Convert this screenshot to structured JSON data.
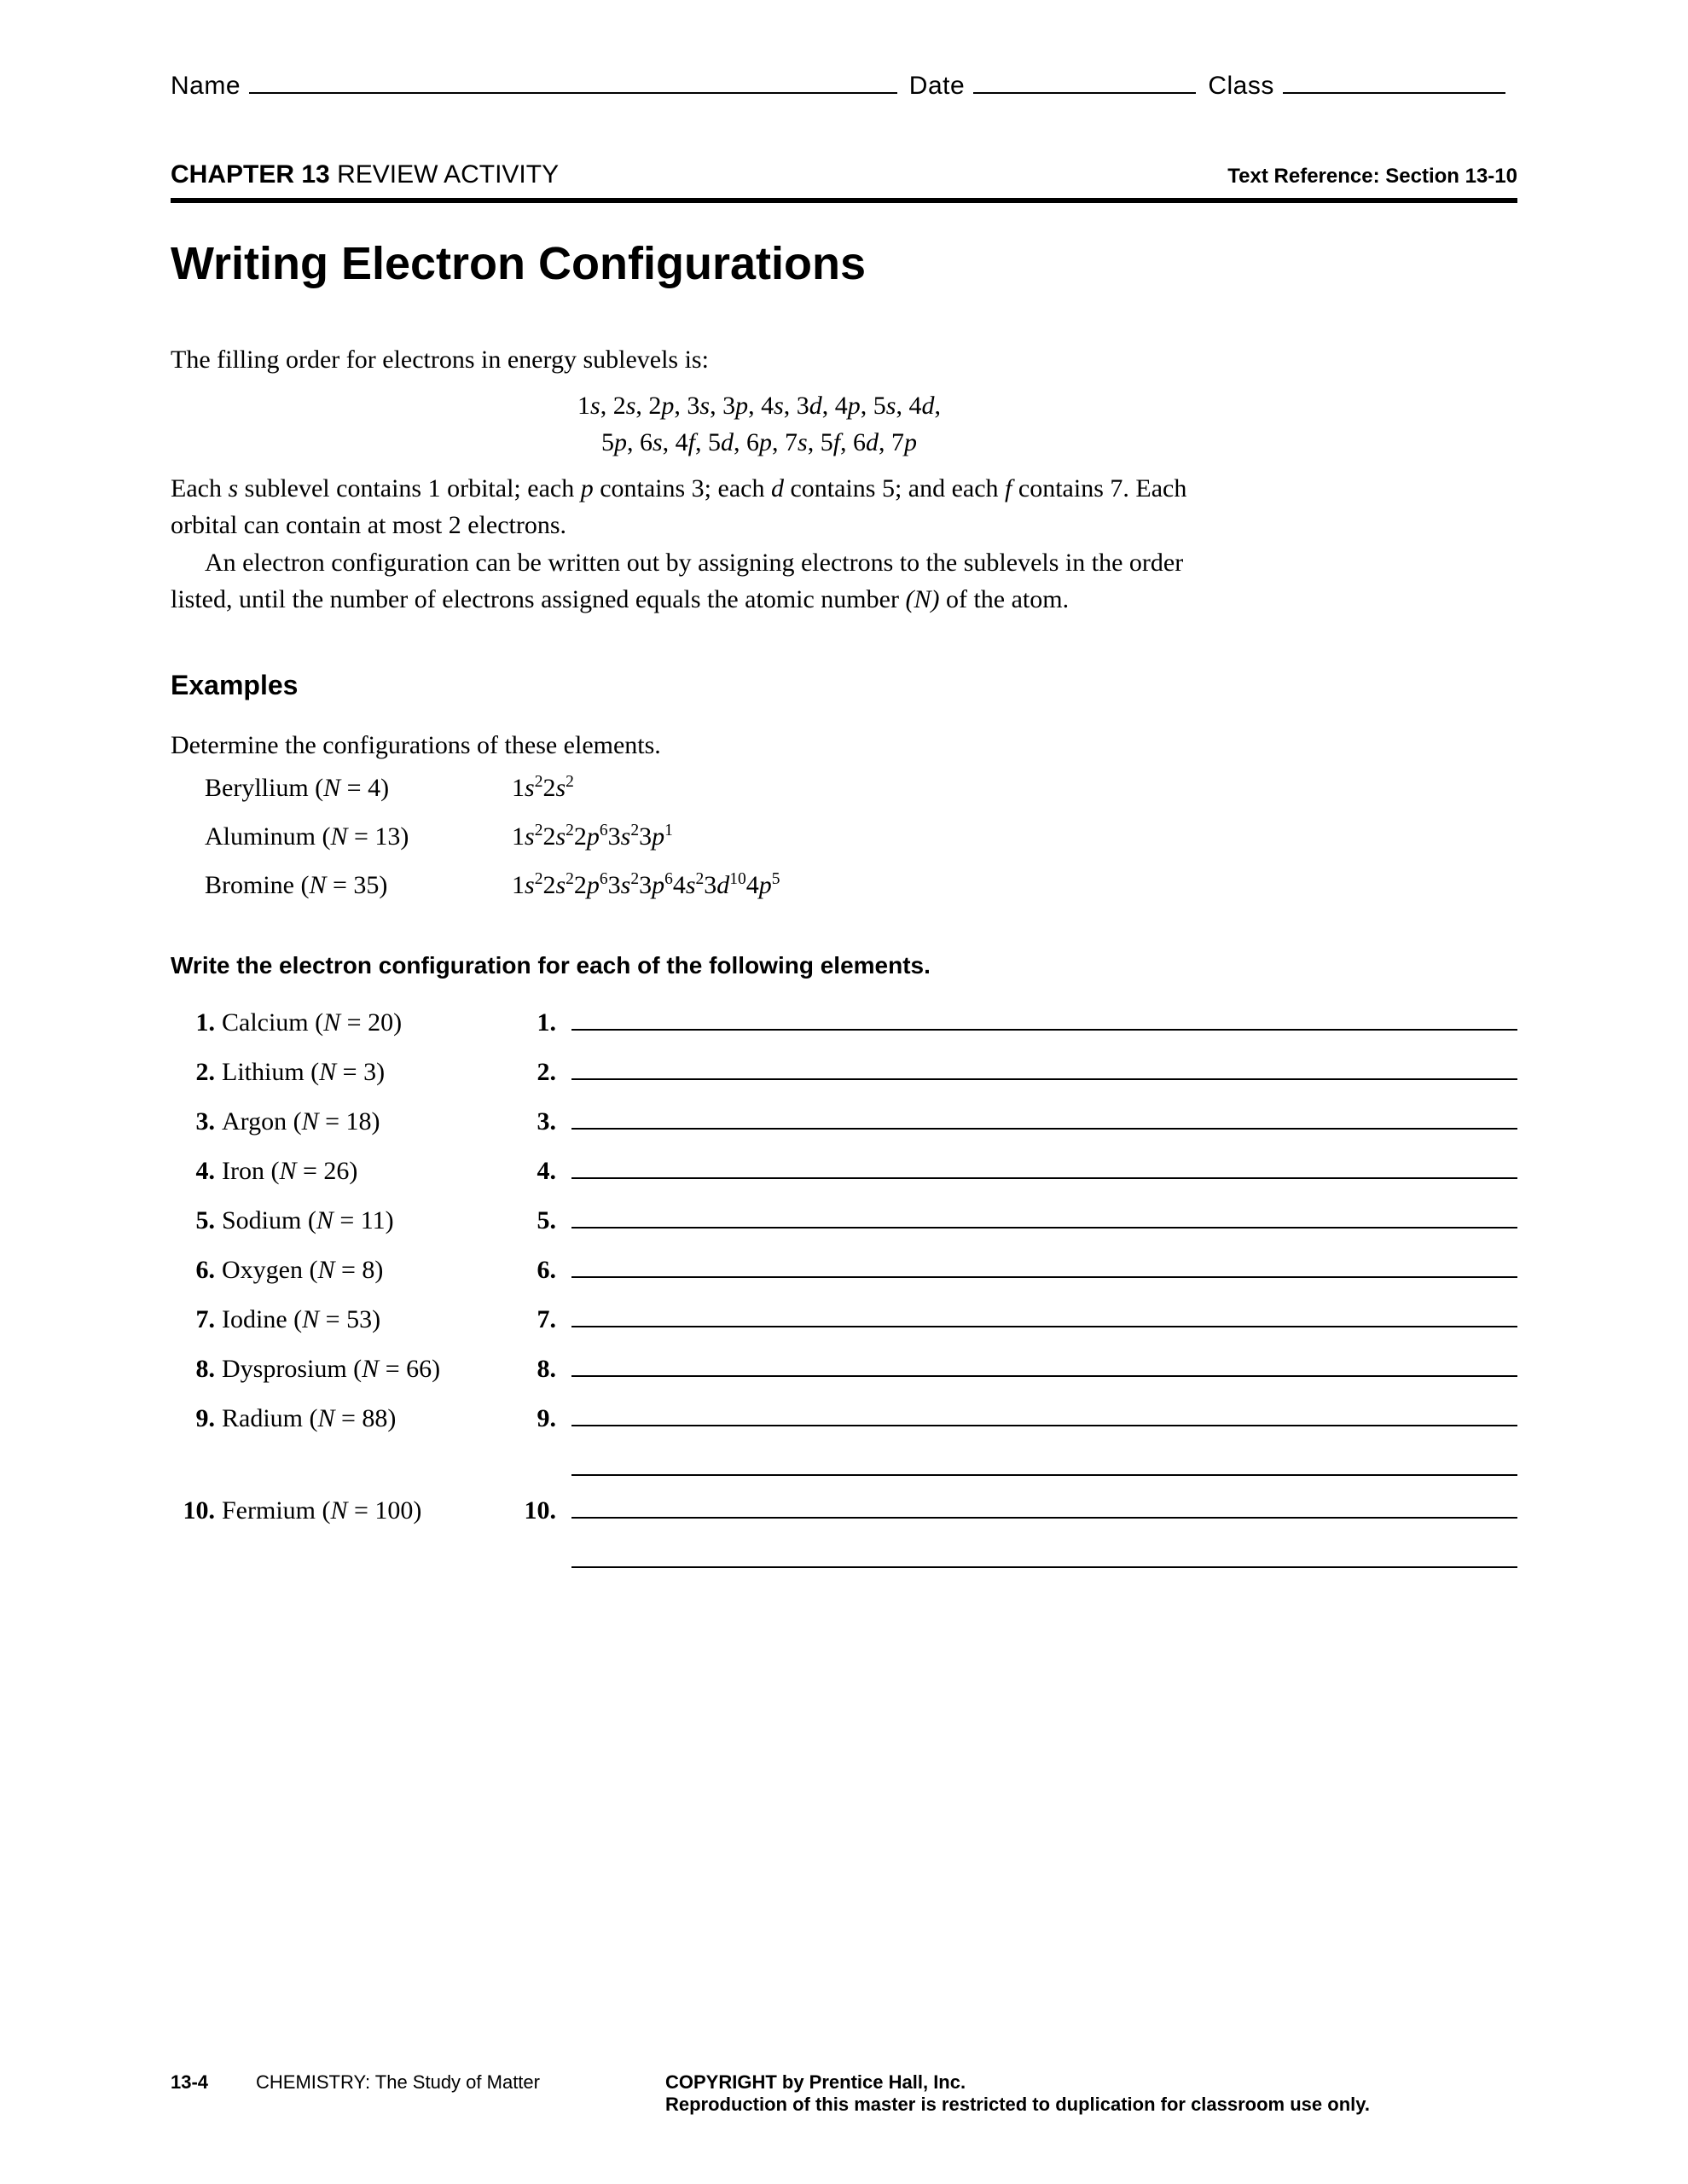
{
  "header": {
    "name_label": "Name",
    "date_label": "Date",
    "class_label": "Class"
  },
  "chapter": {
    "chapter_word": "CHAPTER 13",
    "activity": "REVIEW ACTIVITY",
    "text_ref": "Text Reference: Section 13-10"
  },
  "title": "Writing Electron Configurations",
  "intro": {
    "line1": "The filling order for electrons in energy sublevels is:",
    "fill1_html": "1<span class='it'>s</span>, 2<span class='it'>s</span>, 2<span class='it'>p</span>, 3<span class='it'>s</span>, 3<span class='it'>p</span>, 4<span class='it'>s</span>, 3<span class='it'>d</span>, 4<span class='it'>p</span>, 5<span class='it'>s</span>, 4<span class='it'>d</span>,",
    "fill2_html": "5<span class='it'>p</span>, 6<span class='it'>s</span>, 4<span class='it'>f</span>, 5<span class='it'>d</span>, 6<span class='it'>p</span>, 7<span class='it'>s</span>, 5<span class='it'>f</span>, 6<span class='it'>d</span>, 7<span class='it'>p</span>",
    "para2_html": "Each <span class='it'>s</span> sublevel contains 1 orbital; each <span class='it'>p</span> contains 3; each <span class='it'>d</span> contains 5; and each <span class='it'>f</span> contains 7. Each orbital can contain at most 2 electrons.",
    "para3_html": "An electron configuration can be written out by assigning electrons to the sublevels in the order listed, until the number of electrons assigned equals the atomic number <span class='it'>(N)</span> of the atom."
  },
  "examples": {
    "heading": "Examples",
    "lead": "Determine the configurations of these elements.",
    "rows": [
      {
        "elem_html": "Beryllium (<span class='it'>N</span> = 4)",
        "conf_html": "1<span class='it'>s</span><span class='sup'>2</span>2<span class='it'>s</span><span class='sup'>2</span>"
      },
      {
        "elem_html": "Aluminum (<span class='it'>N</span> = 13)",
        "conf_html": "1<span class='it'>s</span><span class='sup'>2</span>2<span class='it'>s</span><span class='sup'>2</span>2<span class='it'>p</span><span class='sup'>6</span>3<span class='it'>s</span><span class='sup'>2</span>3<span class='it'>p</span><span class='sup'>1</span>"
      },
      {
        "elem_html": "Bromine (<span class='it'>N</span> = 35)",
        "conf_html": "1<span class='it'>s</span><span class='sup'>2</span>2<span class='it'>s</span><span class='sup'>2</span>2<span class='it'>p</span><span class='sup'>6</span>3<span class='it'>s</span><span class='sup'>2</span>3<span class='it'>p</span><span class='sup'>6</span>4<span class='it'>s</span><span class='sup'>2</span>3<span class='it'>d</span><span class='sup'>10</span>4<span class='it'>p</span><span class='sup'>5</span>"
      }
    ]
  },
  "instruction": "Write the electron configuration for each of the following elements.",
  "problems": [
    {
      "n": "1.",
      "elem_html": "Calcium (<span class='it'>N</span> = 20)",
      "an": "1.",
      "extra": 0
    },
    {
      "n": "2.",
      "elem_html": "Lithium (<span class='it'>N</span> = 3)",
      "an": "2.",
      "extra": 0
    },
    {
      "n": "3.",
      "elem_html": "Argon (<span class='it'>N</span> = 18)",
      "an": "3.",
      "extra": 0
    },
    {
      "n": "4.",
      "elem_html": "Iron (<span class='it'>N</span> = 26)",
      "an": "4.",
      "extra": 0
    },
    {
      "n": "5.",
      "elem_html": "Sodium (<span class='it'>N</span> = 11)",
      "an": "5.",
      "extra": 0
    },
    {
      "n": "6.",
      "elem_html": "Oxygen (<span class='it'>N</span> = 8)",
      "an": "6.",
      "extra": 0
    },
    {
      "n": "7.",
      "elem_html": "Iodine (<span class='it'>N</span> = 53)",
      "an": "7.",
      "extra": 0
    },
    {
      "n": "8.",
      "elem_html": "Dysprosium (<span class='it'>N</span> = 66)",
      "an": "8.",
      "extra": 0
    },
    {
      "n": "9.",
      "elem_html": "Radium (<span class='it'>N</span> = 88)",
      "an": "9.",
      "extra": 1
    },
    {
      "n": "10.",
      "elem_html": "Fermium (<span class='it'>N</span> = 100)",
      "an": "10.",
      "extra": 1
    }
  ],
  "footer": {
    "page": "13-4",
    "book": "CHEMISTRY: The Study of Matter",
    "copy1": "COPYRIGHT by Prentice Hall, Inc.",
    "copy2": "Reproduction of this master is restricted to duplication for classroom use only."
  }
}
